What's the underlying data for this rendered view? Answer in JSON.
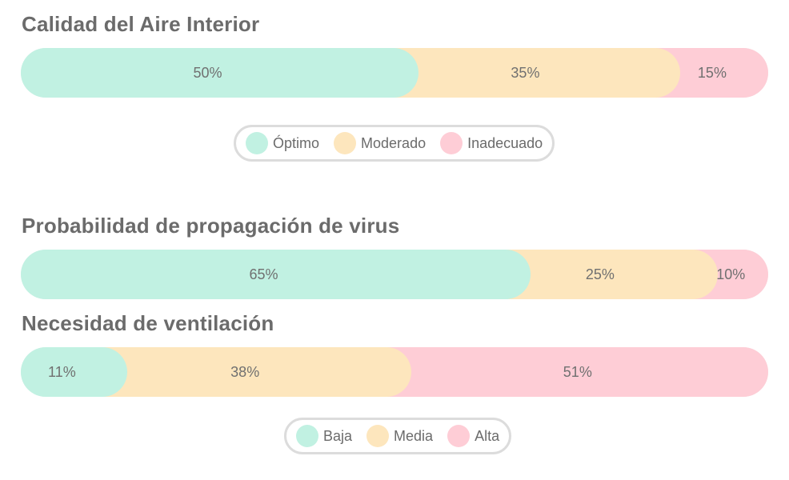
{
  "colors": {
    "green": "#c1f1e2",
    "yellow": "#fde6bd",
    "pink": "#fecdd6"
  },
  "chart_data": [
    {
      "type": "bar",
      "stacked": true,
      "orientation": "horizontal",
      "title": "Calidad del Aire Interior",
      "series": [
        {
          "name": "Óptimo",
          "value": 50,
          "label": "50%",
          "color": "#c1f1e2"
        },
        {
          "name": "Moderado",
          "value": 35,
          "label": "35%",
          "color": "#fde6bd"
        },
        {
          "name": "Inadecuado",
          "value": 15,
          "label": "15%",
          "color": "#fecdd6"
        }
      ],
      "legend": [
        "Óptimo",
        "Moderado",
        "Inadecuado"
      ]
    },
    {
      "type": "bar",
      "stacked": true,
      "orientation": "horizontal",
      "title": "Probabilidad de propagación de virus",
      "series": [
        {
          "value": 65,
          "label": "65%",
          "color": "#c1f1e2"
        },
        {
          "value": 25,
          "label": "25%",
          "color": "#fde6bd"
        },
        {
          "value": 10,
          "label": "10%",
          "color": "#fecdd6"
        }
      ]
    },
    {
      "type": "bar",
      "stacked": true,
      "orientation": "horizontal",
      "title": "Necesidad de ventilación",
      "series": [
        {
          "name": "Baja",
          "value": 11,
          "label": "11%",
          "color": "#c1f1e2"
        },
        {
          "name": "Media",
          "value": 38,
          "label": "38%",
          "color": "#fde6bd"
        },
        {
          "name": "Alta",
          "value": 51,
          "label": "51%",
          "color": "#fecdd6"
        }
      ],
      "legend": [
        "Baja",
        "Media",
        "Alta"
      ]
    }
  ]
}
